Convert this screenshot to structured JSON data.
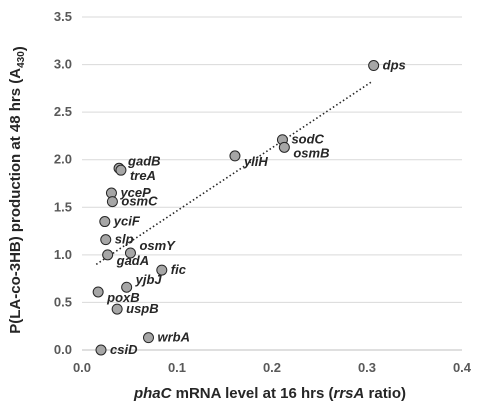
{
  "chart_data": {
    "type": "scatter",
    "title": "",
    "xlabel": {
      "parts": [
        {
          "text": "phaC",
          "style": "italic"
        },
        {
          "text": " mRNA level at 16 hrs (",
          "style": "normal"
        },
        {
          "text": "rrsA",
          "style": "italic"
        },
        {
          "text": " ratio)",
          "style": "normal"
        }
      ]
    },
    "ylabel": {
      "parts": [
        {
          "text": "P(LA-co-3HB) production at 48 hrs (A",
          "style": "normal"
        },
        {
          "text": "430",
          "style": "sub"
        },
        {
          "text": ")",
          "style": "normal"
        }
      ]
    },
    "xlim": [
      0.0,
      0.4
    ],
    "ylim": [
      0.0,
      3.5
    ],
    "x_ticks": [
      0.0,
      0.1,
      0.2,
      0.3,
      0.4
    ],
    "x_tick_labels": [
      "0.0",
      "0.1",
      "0.2",
      "0.3",
      "0.4"
    ],
    "y_ticks": [
      0.0,
      0.5,
      1.0,
      1.5,
      2.0,
      2.5,
      3.0,
      3.5
    ],
    "y_tick_labels": [
      "0.0",
      "0.5",
      "1.0",
      "1.5",
      "2.0",
      "2.5",
      "3.0",
      "3.5"
    ],
    "grid": {
      "horizontal": true,
      "vertical": false
    },
    "marker_color": "#a6a6a6",
    "marker_edge": "#262626",
    "trendline": {
      "style": "dotted",
      "x": [
        0.015,
        0.305
      ],
      "y": [
        0.9,
        2.82
      ],
      "color": "#262626"
    },
    "points": [
      {
        "label": "dps",
        "x": 0.307,
        "y": 2.99,
        "label_pos": "right"
      },
      {
        "label": "sodC",
        "x": 0.211,
        "y": 2.21,
        "label_pos": "right"
      },
      {
        "label": "osmB",
        "x": 0.213,
        "y": 2.13,
        "label_pos": "right-low"
      },
      {
        "label": "yliH",
        "x": 0.161,
        "y": 2.04,
        "label_pos": "right-low"
      },
      {
        "label": "gadB",
        "x": 0.039,
        "y": 1.91,
        "label_pos": "right-high"
      },
      {
        "label": "treA",
        "x": 0.041,
        "y": 1.89,
        "label_pos": "right-low"
      },
      {
        "label": "yceP",
        "x": 0.031,
        "y": 1.65,
        "label_pos": "right"
      },
      {
        "label": "osmC",
        "x": 0.032,
        "y": 1.56,
        "label_pos": "right"
      },
      {
        "label": "yciF",
        "x": 0.024,
        "y": 1.35,
        "label_pos": "right"
      },
      {
        "label": "slp",
        "x": 0.025,
        "y": 1.16,
        "label_pos": "right"
      },
      {
        "label": "osmY",
        "x": 0.051,
        "y": 1.02,
        "label_pos": "right-high"
      },
      {
        "label": "gadA",
        "x": 0.027,
        "y": 1.0,
        "label_pos": "right-low"
      },
      {
        "label": "fic",
        "x": 0.084,
        "y": 0.84,
        "label_pos": "right"
      },
      {
        "label": "yjbJ",
        "x": 0.047,
        "y": 0.66,
        "label_pos": "right-high"
      },
      {
        "label": "poxB",
        "x": 0.017,
        "y": 0.61,
        "label_pos": "right-low"
      },
      {
        "label": "uspB",
        "x": 0.037,
        "y": 0.43,
        "label_pos": "right"
      },
      {
        "label": "wrbA",
        "x": 0.07,
        "y": 0.13,
        "label_pos": "right"
      },
      {
        "label": "csiD",
        "x": 0.02,
        "y": 0.0,
        "label_pos": "right"
      }
    ]
  }
}
